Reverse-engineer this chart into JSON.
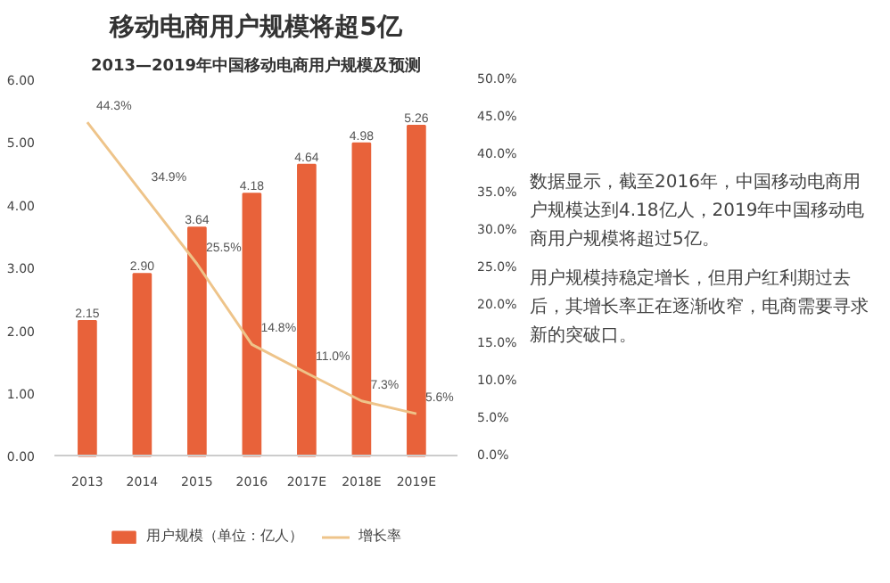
{
  "chart_data": {
    "type": "bar",
    "title": "移动电商用户规模将超5亿",
    "subtitle": "2013—2019年中国移动电商用户规模及预测",
    "categories": [
      "2013",
      "2014",
      "2015",
      "2016",
      "2017E",
      "2018E",
      "2019E"
    ],
    "series": [
      {
        "name": "用户规模（单位：亿人）",
        "color": "#e8623a",
        "values": [
          2.15,
          2.9,
          3.64,
          4.18,
          4.64,
          4.98,
          5.26
        ],
        "value_labels": [
          "2.15",
          "2.90",
          "3.64",
          "4.18",
          "4.64",
          "4.98",
          "5.26"
        ]
      },
      {
        "name": "增长率",
        "type": "line",
        "axis": "y2",
        "color": "#eec48a",
        "values": [
          44.3,
          34.9,
          25.5,
          14.8,
          11.0,
          7.3,
          5.6
        ],
        "value_labels": [
          "44.3%",
          "34.9%",
          "25.5%",
          "14.8%",
          "11.0%",
          "7.3%",
          "5.6%"
        ]
      }
    ],
    "ylim": [
      0,
      6
    ],
    "yticks": [
      {
        "value": 0,
        "label": "0.00"
      },
      {
        "value": 1,
        "label": "1.00"
      },
      {
        "value": 2,
        "label": "2.00"
      },
      {
        "value": 3,
        "label": "3.00"
      },
      {
        "value": 4,
        "label": "4.00"
      },
      {
        "value": 5,
        "label": "5.00"
      },
      {
        "value": 6,
        "label": "6.00"
      }
    ],
    "y2lim": [
      0,
      50
    ],
    "y2ticks": [
      {
        "value": 0,
        "label": "0.0%"
      },
      {
        "value": 5,
        "label": "5.0%"
      },
      {
        "value": 10,
        "label": "10.0%"
      },
      {
        "value": 15,
        "label": "15.0%"
      },
      {
        "value": 20,
        "label": "20.0%"
      },
      {
        "value": 25,
        "label": "25.0%"
      },
      {
        "value": 30,
        "label": "30.0%"
      },
      {
        "value": 35,
        "label": "35.0%"
      },
      {
        "value": 40,
        "label": "40.0%"
      },
      {
        "value": 45,
        "label": "45.0%"
      },
      {
        "value": 50,
        "label": "50.0%"
      }
    ],
    "legend": "bottom",
    "grid": false,
    "annotations": [
      "数据显示，截至2016年，中国移动电商用户规模达到4.18亿人，2019年中国移动电商用户规模将超过5亿。",
      "用户规模持稳定增长，但用户红利期过去后，其增长率正在逐渐收窄，电商需要寻求新的突破口。"
    ]
  }
}
